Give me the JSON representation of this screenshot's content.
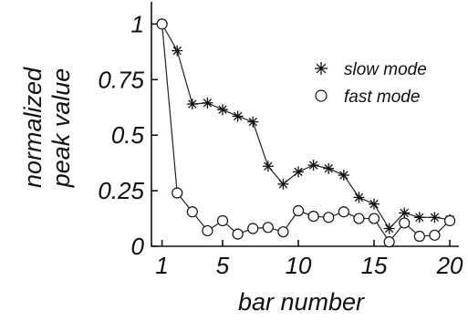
{
  "chart_data": {
    "type": "line",
    "xlabel": "bar number",
    "ylabel_lines": [
      "normalized",
      "peak value"
    ],
    "xlim": [
      0.3,
      20.6
    ],
    "ylim": [
      0,
      1.1
    ],
    "xticks": [
      1,
      5,
      10,
      15,
      20
    ],
    "xtick_labels": [
      "1",
      "5",
      "10",
      "15",
      "20"
    ],
    "yticks": [
      0,
      0.25,
      0.5,
      0.75,
      1
    ],
    "ytick_labels": [
      "0",
      "0.25",
      "0.5",
      "0.75",
      "1"
    ],
    "x": [
      1,
      2,
      3,
      4,
      5,
      6,
      7,
      8,
      9,
      10,
      11,
      12,
      13,
      14,
      15,
      16,
      17,
      18,
      19,
      20
    ],
    "series": [
      {
        "name": "slow mode",
        "marker": "star",
        "values": [
          1.0,
          0.88,
          0.64,
          0.645,
          0.615,
          0.585,
          0.56,
          0.36,
          0.28,
          0.335,
          0.365,
          0.35,
          0.32,
          0.22,
          0.19,
          0.08,
          0.15,
          0.13,
          0.13,
          0.12
        ]
      },
      {
        "name": "fast mode",
        "marker": "circle",
        "values": [
          1.0,
          0.24,
          0.155,
          0.07,
          0.115,
          0.055,
          0.08,
          0.085,
          0.065,
          0.16,
          0.135,
          0.13,
          0.155,
          0.125,
          0.125,
          0.02,
          0.105,
          0.045,
          0.05,
          0.115
        ]
      }
    ],
    "legend_position": "top-right",
    "grid": false
  }
}
